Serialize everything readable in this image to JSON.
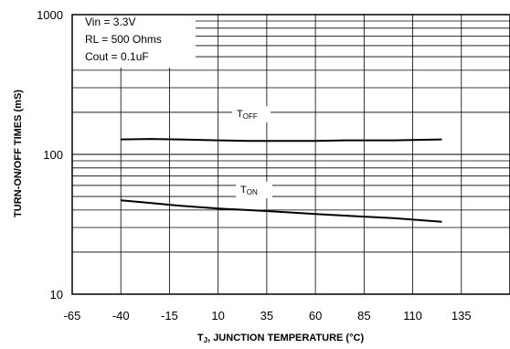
{
  "chart_data": {
    "type": "line",
    "xlabel": {
      "main": "T",
      "sub": "J",
      "rest": ", JUNCTION TEMPERATURE (°C)"
    },
    "ylabel": "TURN-ON/OFF TIMES (mS)",
    "xlim": [
      -65,
      160
    ],
    "ylim": [
      10,
      1000
    ],
    "yscale": "log",
    "grid": true,
    "x_ticks": [
      -65,
      -40,
      -15,
      10,
      35,
      60,
      85,
      110,
      135
    ],
    "x_tick_labels": [
      "-65",
      "-40",
      "-15",
      "10",
      "35",
      "60",
      "85",
      "110",
      "135"
    ],
    "y_ticks": [
      10,
      100,
      1000
    ],
    "y_tick_labels": [
      "10",
      "100",
      "1000"
    ],
    "conditions": [
      "Vin = 3.3V",
      "RL = 500 Ohms",
      "Cout = 0.1uF"
    ],
    "series": [
      {
        "name": "T_OFF",
        "label_main": "T",
        "label_sub": "OFF",
        "x": [
          -40,
          -25,
          -10,
          10,
          25,
          40,
          60,
          75,
          100,
          125
        ],
        "y": [
          128,
          129,
          128,
          126,
          125,
          125,
          125,
          126,
          126,
          128
        ]
      },
      {
        "name": "T_ON",
        "label_main": "T",
        "label_sub": "ON",
        "x": [
          -40,
          -25,
          -10,
          10,
          25,
          40,
          60,
          75,
          100,
          125
        ],
        "y": [
          47,
          45,
          43,
          41,
          40,
          39,
          37.5,
          36.5,
          35,
          33
        ]
      }
    ],
    "colors": {
      "line": "#000000",
      "grid": "#000000",
      "background": "#ffffff"
    }
  }
}
